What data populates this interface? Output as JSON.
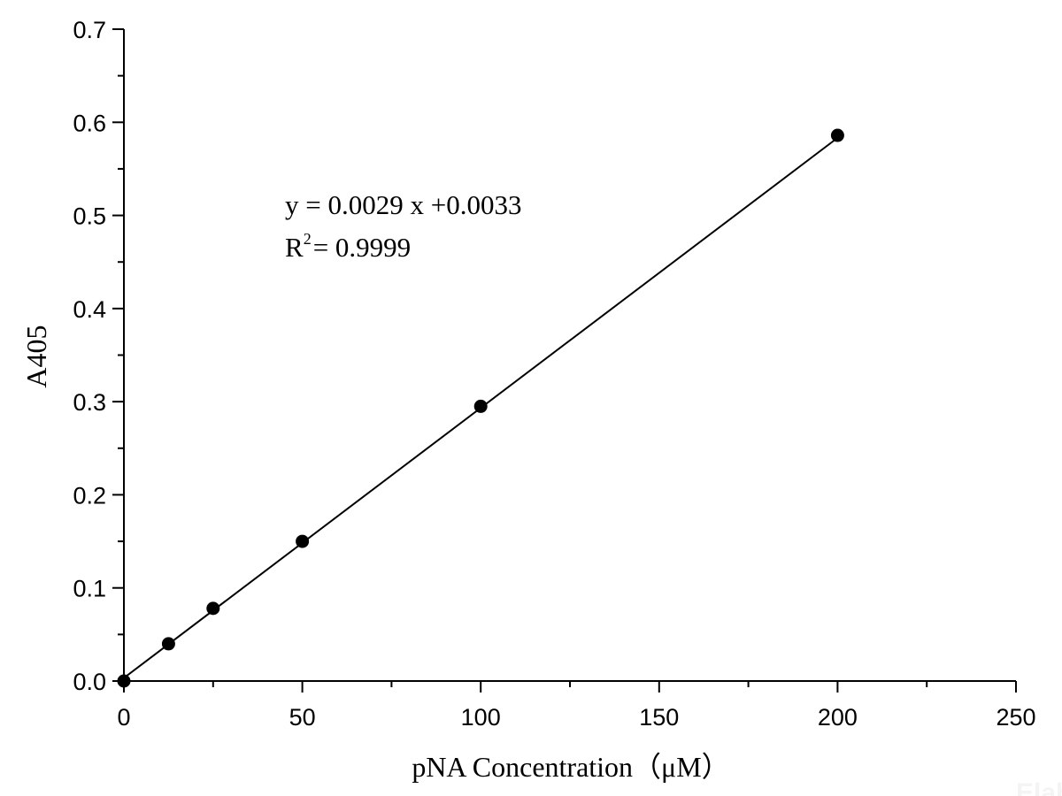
{
  "chart_data": {
    "type": "scatter",
    "xlabel": "pNA Concentration（μM）",
    "ylabel": "A405",
    "xlim": [
      0,
      250
    ],
    "ylim": [
      0,
      0.7
    ],
    "x_ticks": [
      "0",
      "50",
      "100",
      "150",
      "200",
      "250"
    ],
    "y_ticks": [
      "0.0",
      "0.1",
      "0.2",
      "0.3",
      "0.4",
      "0.5",
      "0.6",
      "0.7"
    ],
    "grid": false,
    "points": [
      {
        "x": 0,
        "y": 0.0
      },
      {
        "x": 12.5,
        "y": 0.04
      },
      {
        "x": 25,
        "y": 0.078
      },
      {
        "x": 50,
        "y": 0.15
      },
      {
        "x": 100,
        "y": 0.295
      },
      {
        "x": 200,
        "y": 0.586
      }
    ],
    "fit_line": {
      "slope": 0.0029,
      "intercept": 0.0033,
      "x_range": [
        0,
        200
      ]
    },
    "annotations": {
      "equation": "y = 0.0029 x +0.0033",
      "r2_label": "R",
      "r2_sup": "2",
      "r2_value": "= 0.9999"
    },
    "watermark": "Elab"
  }
}
